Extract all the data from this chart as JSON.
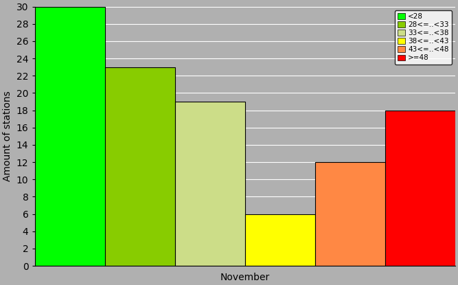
{
  "bars": [
    {
      "label": "<28",
      "value": 30,
      "color": "#00FF00"
    },
    {
      "label": "28<=..<33",
      "value": 23,
      "color": "#88CC00"
    },
    {
      "label": "33<=..<38",
      "value": 19,
      "color": "#CCDD88"
    },
    {
      "label": "38<=..<43",
      "value": 6,
      "color": "#FFFF00"
    },
    {
      "label": "43<=..<48",
      "value": 12,
      "color": "#FF8844"
    },
    {
      "label": ">=48",
      "value": 18,
      "color": "#FF0000"
    }
  ],
  "ylabel": "Amount of stations",
  "xlabel": "November",
  "ylim": [
    0,
    30
  ],
  "yticks": [
    0,
    2,
    4,
    6,
    8,
    10,
    12,
    14,
    16,
    18,
    20,
    22,
    24,
    26,
    28,
    30
  ],
  "plot_bg": "#B0B0B0",
  "fig_bg": "#B0B0B0",
  "legend_fontsize": 7.5,
  "axis_fontsize": 10
}
